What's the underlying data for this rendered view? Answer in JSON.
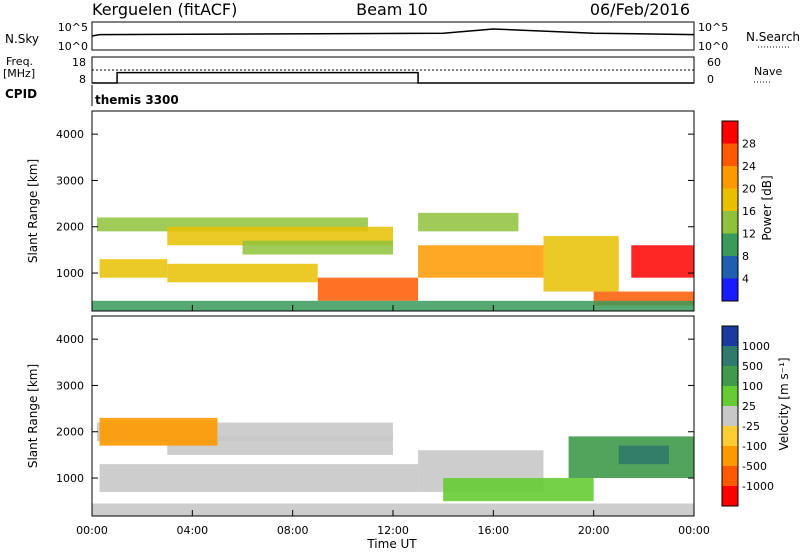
{
  "header": {
    "station": "Kerguelen (fitACF)",
    "beam": "Beam 10",
    "date": "06/Feb/2016"
  },
  "noise_panel": {
    "left_label": "N.Sky",
    "left_ticks": [
      "10^5",
      "10^0"
    ],
    "right_label": "N.Search",
    "right_ticks": [
      "10^5",
      "10^0"
    ]
  },
  "freq_panel": {
    "left_label_line1": "Freq.",
    "left_label_line2": "[MHz]",
    "left_ticks": [
      "18",
      "8"
    ],
    "right_label": "Nave",
    "right_ticks": [
      "60",
      "0"
    ],
    "cpid_label": "CPID",
    "cpid_value": "themis 3300"
  },
  "x_axis": {
    "title": "Time UT",
    "ticks": [
      "00:00",
      "04:00",
      "08:00",
      "12:00",
      "16:00",
      "20:00",
      "00:00"
    ]
  },
  "power_panel": {
    "ylabel": "Slant Range [km]",
    "yticks": [
      "4000",
      "3000",
      "2000",
      "1000"
    ],
    "colorbar_title": "Power [dB]",
    "colorbar_labels": [
      "28",
      "24",
      "20",
      "16",
      "12",
      "8",
      "4"
    ],
    "colorbar_colors": [
      "#ff0000",
      "#ff5a00",
      "#ff9900",
      "#e8c000",
      "#8fc23c",
      "#3a9a5a",
      "#1f5fb0",
      "#1a1aff"
    ]
  },
  "velocity_panel": {
    "ylabel": "Slant Range [km]",
    "yticks": [
      "4000",
      "3000",
      "2000",
      "1000"
    ],
    "colorbar_title": "Velocity [m s⁻¹]",
    "colorbar_labels": [
      "1000",
      "500",
      "100",
      "25",
      "-25",
      "-100",
      "-500",
      "-1000"
    ],
    "colorbar_colors": [
      "#1a3aa0",
      "#2f7a6a",
      "#3f9a4a",
      "#66cc33",
      "#c8c8c8",
      "#ffcc33",
      "#ff9900",
      "#ff5a00",
      "#ff0000"
    ]
  },
  "chart_data": {
    "type": "heatmap",
    "x_range_hours": [
      0,
      24
    ],
    "y_range_km": [
      180,
      4500
    ],
    "frequency_mhz": {
      "times": [
        0,
        1,
        13,
        24
      ],
      "values": [
        8,
        12,
        8,
        8
      ]
    },
    "noise_search_level": {
      "times": [
        0,
        0.3,
        14,
        16,
        20,
        24
      ],
      "values": [
        0.5,
        0.55,
        0.6,
        0.75,
        0.6,
        0.55
      ]
    },
    "power_regions": [
      {
        "t0": 0.2,
        "t1": 11,
        "r0": 1900,
        "r1": 2200,
        "level": 12
      },
      {
        "t0": 3,
        "t1": 12,
        "r0": 1600,
        "r1": 2000,
        "level": 16
      },
      {
        "t0": 6,
        "t1": 12,
        "r0": 1400,
        "r1": 1700,
        "level": 12
      },
      {
        "t0": 0.3,
        "t1": 3,
        "r0": 900,
        "r1": 1300,
        "level": 16
      },
      {
        "t0": 3,
        "t1": 9,
        "r0": 800,
        "r1": 1200,
        "level": 16
      },
      {
        "t0": 9,
        "t1": 13,
        "r0": 400,
        "r1": 900,
        "level": 24
      },
      {
        "t0": 13,
        "t1": 18,
        "r0": 900,
        "r1": 1600,
        "level": 20
      },
      {
        "t0": 13,
        "t1": 17,
        "r0": 1900,
        "r1": 2300,
        "level": 12
      },
      {
        "t0": 18,
        "t1": 21,
        "r0": 600,
        "r1": 1800,
        "level": 16
      },
      {
        "t0": 21.5,
        "t1": 24,
        "r0": 900,
        "r1": 1600,
        "level": 28
      },
      {
        "t0": 20,
        "t1": 24,
        "r0": 300,
        "r1": 600,
        "level": 24
      },
      {
        "t0": 0,
        "t1": 24,
        "r0": 180,
        "r1": 400,
        "level": 8
      }
    ],
    "velocity_regions": [
      {
        "t0": 0.2,
        "t1": 12,
        "r0": 1800,
        "r1": 2200,
        "v": 0
      },
      {
        "t0": 3,
        "t1": 12,
        "r0": 1500,
        "r1": 1900,
        "v": 0
      },
      {
        "t0": 0.3,
        "t1": 13,
        "r0": 700,
        "r1": 1300,
        "v": 0
      },
      {
        "t0": 13,
        "t1": 18,
        "r0": 700,
        "r1": 1600,
        "v": 0
      },
      {
        "t0": 0.3,
        "t1": 5,
        "r0": 1700,
        "r1": 2300,
        "v": -300
      },
      {
        "t0": 14,
        "t1": 20,
        "r0": 500,
        "r1": 1000,
        "v": 60
      },
      {
        "t0": 19,
        "t1": 24,
        "r0": 1000,
        "r1": 1900,
        "v": 300
      },
      {
        "t0": 21,
        "t1": 23,
        "r0": 1300,
        "r1": 1700,
        "v": 800
      },
      {
        "t0": 0,
        "t1": 24,
        "r0": 180,
        "r1": 450,
        "v": 0
      }
    ]
  }
}
